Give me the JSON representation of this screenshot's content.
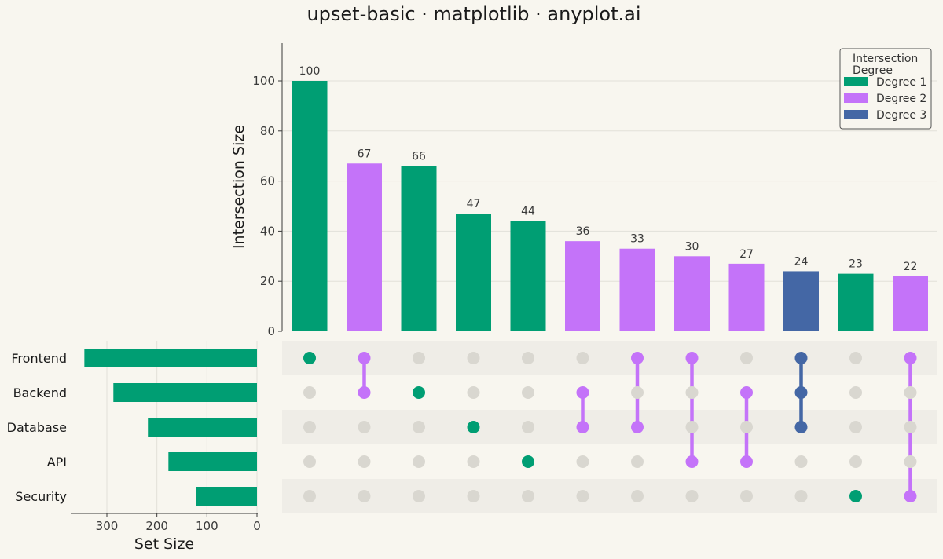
{
  "title": "upset-basic · matplotlib · anyplot.ai",
  "colors": {
    "background": "#F8F6EF",
    "degree_1": "#009E73",
    "degree_2": "#C473F9",
    "degree_3": "#4467A5",
    "inactive_dot": "#D9D7D0",
    "stripe": "#EFEDE7",
    "grid": "#E2E0D9",
    "axis": "#3a3a3a"
  },
  "chart_data": {
    "type": "upset",
    "sets": [
      "Frontend",
      "Backend",
      "Database",
      "API",
      "Security"
    ],
    "set_sizes": [
      345,
      287,
      218,
      177,
      121
    ],
    "intersections": [
      {
        "members": [
          "Frontend"
        ],
        "size": 100,
        "degree": 1
      },
      {
        "members": [
          "Frontend",
          "Backend"
        ],
        "size": 67,
        "degree": 2
      },
      {
        "members": [
          "Backend"
        ],
        "size": 66,
        "degree": 1
      },
      {
        "members": [
          "Database"
        ],
        "size": 47,
        "degree": 1
      },
      {
        "members": [
          "API"
        ],
        "size": 44,
        "degree": 1
      },
      {
        "members": [
          "Backend",
          "Database"
        ],
        "size": 36,
        "degree": 2
      },
      {
        "members": [
          "Frontend",
          "Database"
        ],
        "size": 33,
        "degree": 2
      },
      {
        "members": [
          "Frontend",
          "API"
        ],
        "size": 30,
        "degree": 2
      },
      {
        "members": [
          "Backend",
          "API"
        ],
        "size": 27,
        "degree": 2
      },
      {
        "members": [
          "Frontend",
          "Backend",
          "Database"
        ],
        "size": 24,
        "degree": 3
      },
      {
        "members": [
          "Security"
        ],
        "size": 23,
        "degree": 1
      },
      {
        "members": [
          "Frontend",
          "Security"
        ],
        "size": 22,
        "degree": 2
      }
    ],
    "intersection_axis": {
      "ylabel": "Intersection Size",
      "ylim": [
        0,
        116
      ],
      "ticks": [
        0,
        20,
        40,
        60,
        80,
        100
      ]
    },
    "set_axis": {
      "xlabel": "Set Size",
      "xlim": [
        0,
        370
      ],
      "ticks": [
        300,
        200,
        100,
        0
      ],
      "reversed": true
    },
    "legend": {
      "title_lines": [
        "Intersection",
        "Degree"
      ],
      "entries": [
        {
          "label": "Degree 1",
          "degree": 1
        },
        {
          "label": "Degree 2",
          "degree": 2
        },
        {
          "label": "Degree 3",
          "degree": 3
        }
      ],
      "placement": "top-right"
    },
    "grid": true
  }
}
